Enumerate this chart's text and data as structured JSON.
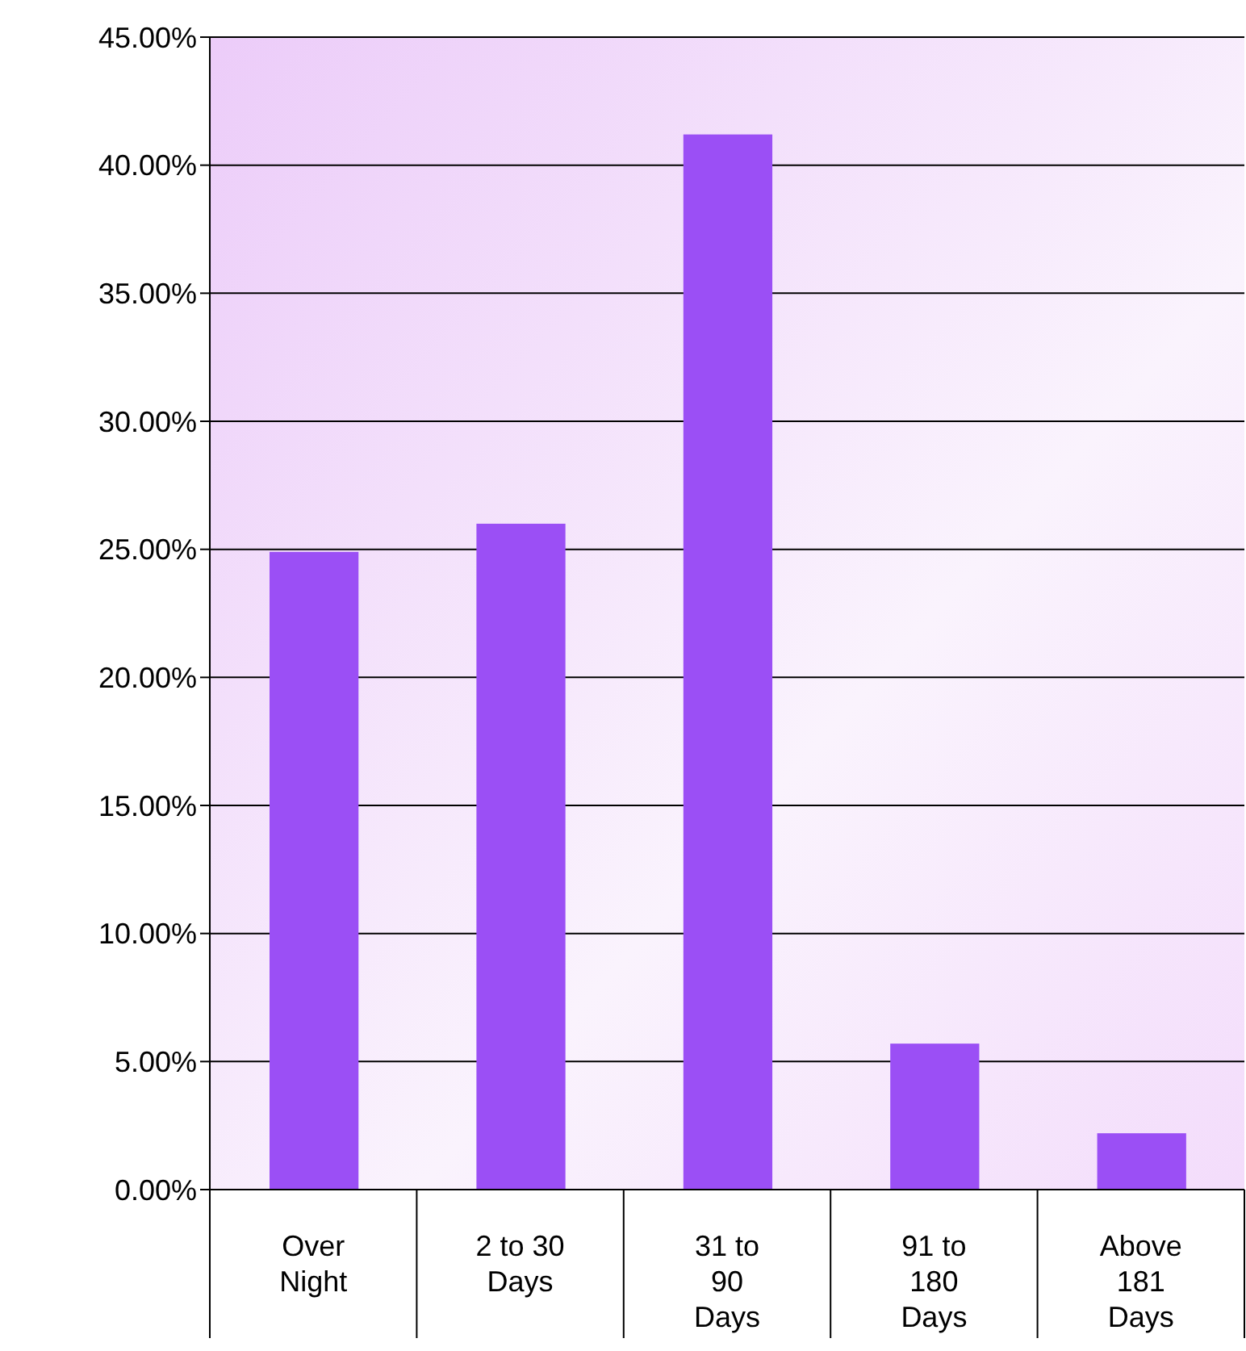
{
  "chart_data": {
    "type": "bar",
    "categories": [
      "Over Night",
      "2 to 30 Days",
      "31 to 90 Days",
      "91 to 180 Days",
      "Above 181 Days"
    ],
    "values": [
      24.9,
      26.0,
      41.2,
      5.7,
      2.2
    ],
    "color": "#9b4ff5",
    "ylim": [
      0,
      45
    ],
    "yticks": [
      {
        "value": 0,
        "label": "0.00%"
      },
      {
        "value": 5,
        "label": "5.00%"
      },
      {
        "value": 10,
        "label": "10.00%"
      },
      {
        "value": 15,
        "label": "15.00%"
      },
      {
        "value": 20,
        "label": "20.00%"
      },
      {
        "value": 25,
        "label": "25.00%"
      },
      {
        "value": 30,
        "label": "30.00%"
      },
      {
        "value": 35,
        "label": "35.00%"
      },
      {
        "value": 40,
        "label": "40.00%"
      },
      {
        "value": 45,
        "label": "45.00%"
      }
    ],
    "grid": "y",
    "legend": false
  }
}
